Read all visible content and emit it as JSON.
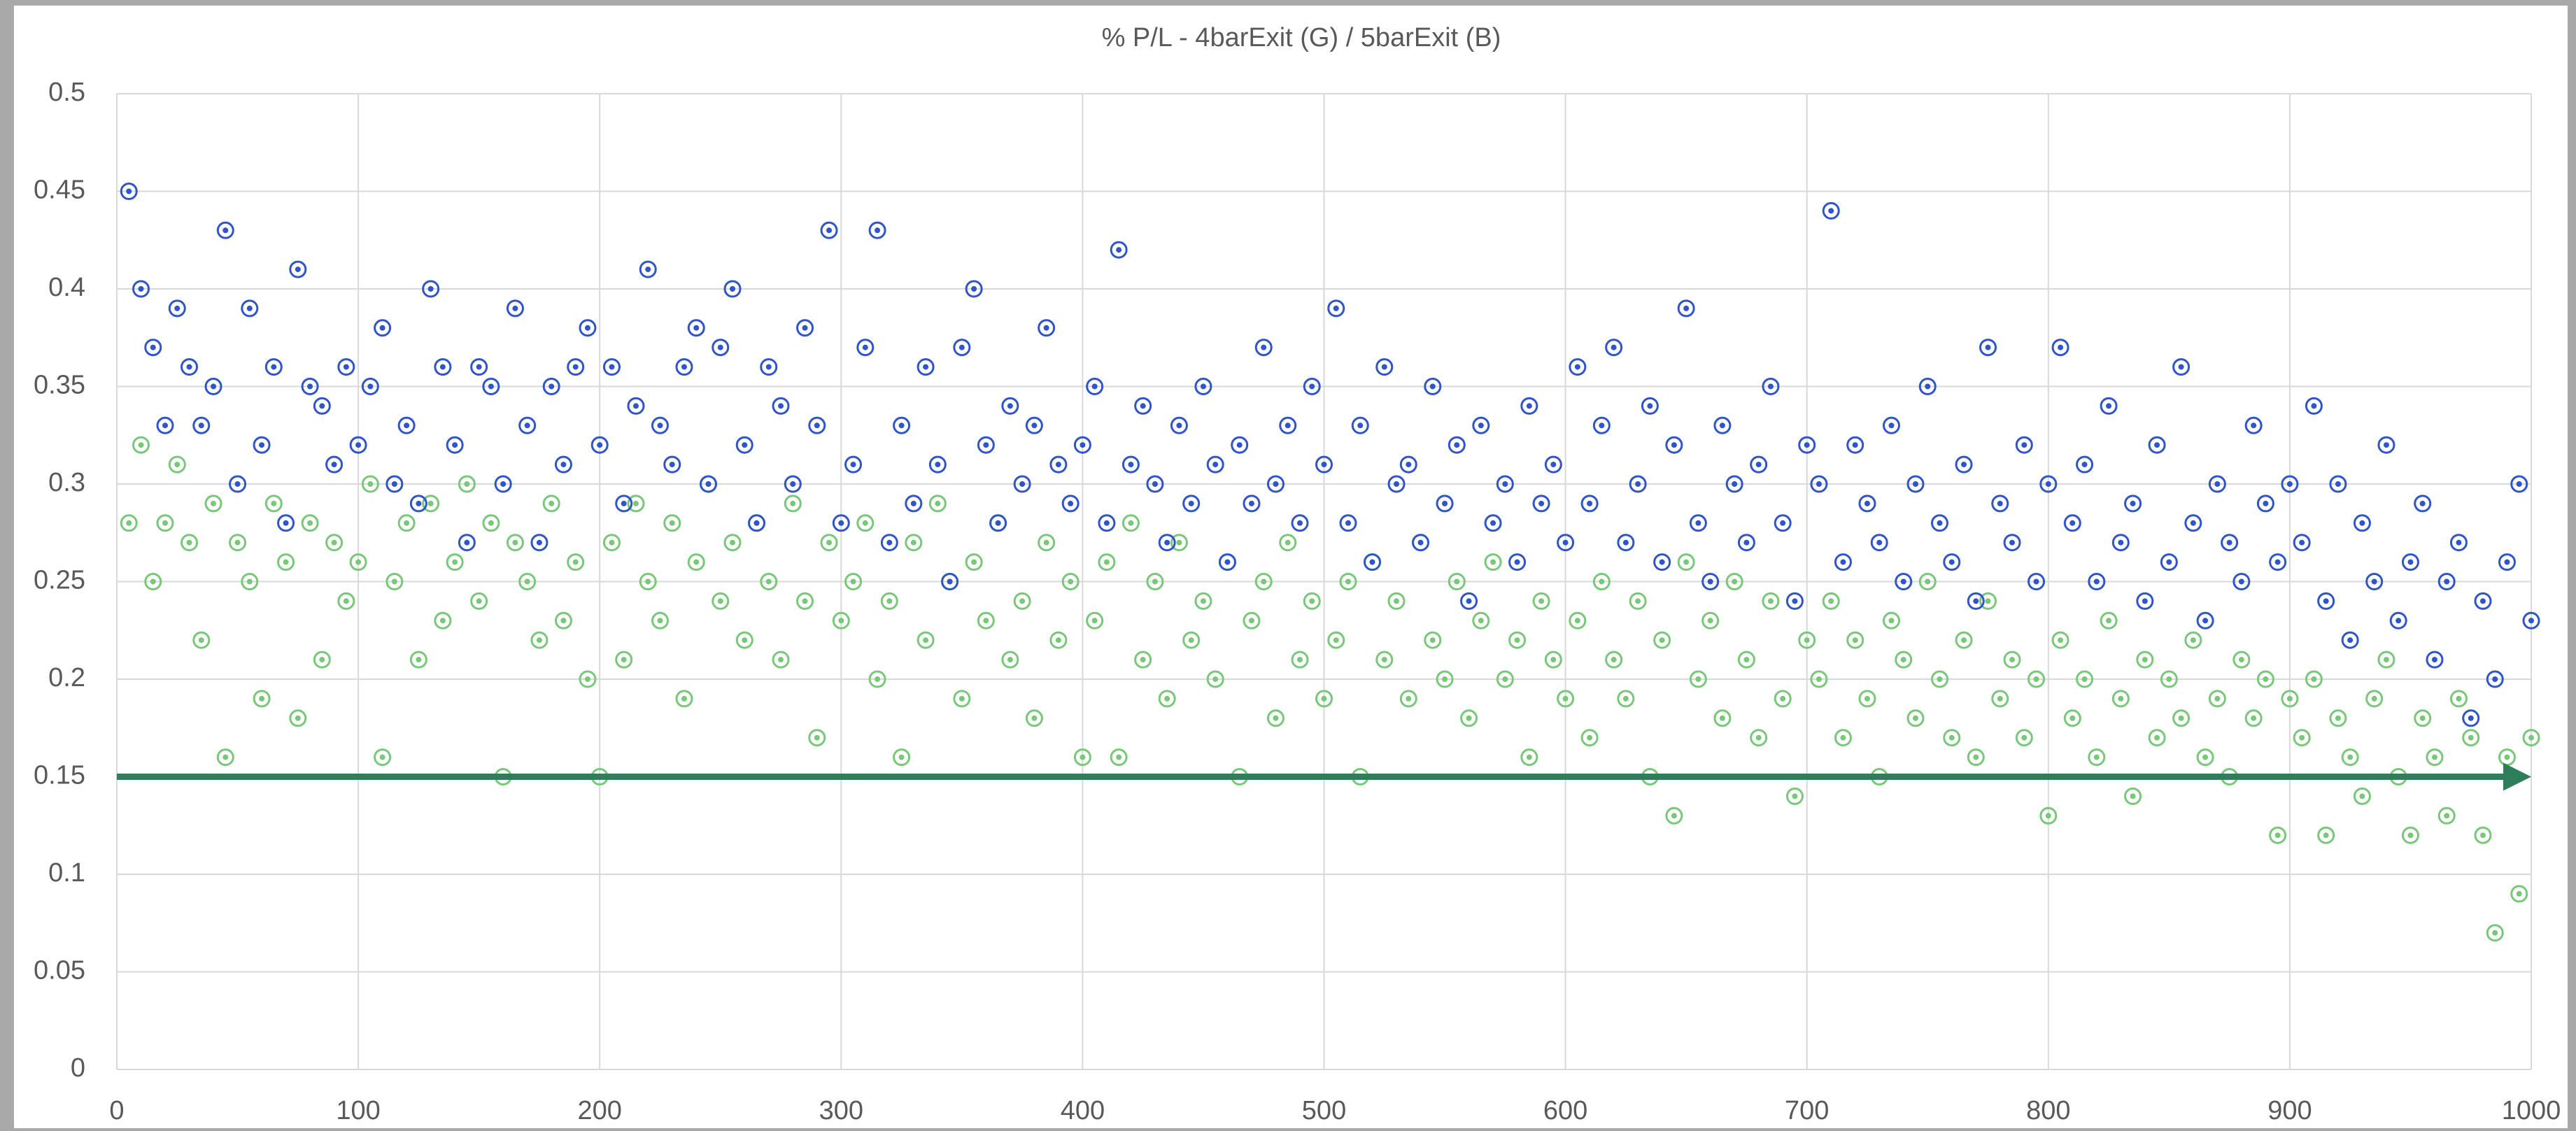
{
  "chart_data": {
    "type": "scatter",
    "title": "% P/L - 4barExit (G) / 5barExit (B)",
    "xlim": [
      0,
      1000
    ],
    "xticks": [
      0,
      100,
      200,
      300,
      400,
      500,
      600,
      700,
      800,
      900,
      1000
    ],
    "ylim": [
      0,
      0.5
    ],
    "yticks": [
      0,
      0.05,
      0.1,
      0.15,
      0.2,
      0.25,
      0.3,
      0.35,
      0.4,
      0.45,
      0.5
    ],
    "grid": true,
    "x": [
      5,
      10,
      15,
      20,
      25,
      30,
      35,
      40,
      45,
      50,
      55,
      60,
      65,
      70,
      75,
      80,
      85,
      90,
      95,
      100,
      105,
      110,
      115,
      120,
      125,
      130,
      135,
      140,
      145,
      150,
      155,
      160,
      165,
      170,
      175,
      180,
      185,
      190,
      195,
      200,
      205,
      210,
      215,
      220,
      225,
      230,
      235,
      240,
      245,
      250,
      255,
      260,
      265,
      270,
      275,
      280,
      285,
      290,
      295,
      300,
      305,
      310,
      315,
      320,
      325,
      330,
      335,
      340,
      345,
      350,
      355,
      360,
      365,
      370,
      375,
      380,
      385,
      390,
      395,
      400,
      405,
      410,
      415,
      420,
      425,
      430,
      435,
      440,
      445,
      450,
      455,
      460,
      465,
      470,
      475,
      480,
      485,
      490,
      495,
      500,
      505,
      510,
      515,
      520,
      525,
      530,
      535,
      540,
      545,
      550,
      555,
      560,
      565,
      570,
      575,
      580,
      585,
      590,
      595,
      600,
      605,
      610,
      615,
      620,
      625,
      630,
      635,
      640,
      645,
      650,
      655,
      660,
      665,
      670,
      675,
      680,
      685,
      690,
      695,
      700,
      705,
      710,
      715,
      720,
      725,
      730,
      735,
      740,
      745,
      750,
      755,
      760,
      765,
      770,
      775,
      780,
      785,
      790,
      795,
      800,
      805,
      810,
      815,
      820,
      825,
      830,
      835,
      840,
      845,
      850,
      855,
      860,
      865,
      870,
      875,
      880,
      885,
      890,
      895,
      900,
      905,
      910,
      915,
      920,
      925,
      930,
      935,
      940,
      945,
      950,
      955,
      960,
      965,
      970,
      975,
      980,
      985,
      990,
      995,
      1000
    ],
    "series": [
      {
        "name": "4barExit (G)",
        "color": "#79c879",
        "values": [
          0.28,
          0.32,
          0.25,
          0.28,
          0.31,
          0.27,
          0.22,
          0.29,
          0.16,
          0.27,
          0.25,
          0.19,
          0.29,
          0.26,
          0.18,
          0.28,
          0.21,
          0.27,
          0.24,
          0.26,
          0.3,
          0.16,
          0.25,
          0.28,
          0.21,
          0.29,
          0.23,
          0.26,
          0.3,
          0.24,
          0.28,
          0.15,
          0.27,
          0.25,
          0.22,
          0.29,
          0.23,
          0.26,
          0.2,
          0.15,
          0.27,
          0.21,
          0.29,
          0.25,
          0.23,
          0.28,
          0.19,
          0.26,
          0.3,
          0.24,
          0.27,
          0.22,
          0.28,
          0.25,
          0.21,
          0.29,
          0.24,
          0.17,
          0.27,
          0.23,
          0.25,
          0.28,
          0.2,
          0.24,
          0.16,
          0.27,
          0.22,
          0.29,
          0.25,
          0.19,
          0.26,
          0.23,
          0.28,
          0.21,
          0.24,
          0.18,
          0.27,
          0.22,
          0.25,
          0.16,
          0.23,
          0.26,
          0.16,
          0.28,
          0.21,
          0.25,
          0.19,
          0.27,
          0.22,
          0.24,
          0.2,
          0.26,
          0.15,
          0.23,
          0.25,
          0.18,
          0.27,
          0.21,
          0.24,
          0.19,
          0.22,
          0.25,
          0.15,
          0.26,
          0.21,
          0.24,
          0.19,
          0.27,
          0.22,
          0.2,
          0.25,
          0.18,
          0.23,
          0.26,
          0.2,
          0.22,
          0.16,
          0.24,
          0.21,
          0.19,
          0.23,
          0.17,
          0.25,
          0.21,
          0.19,
          0.24,
          0.15,
          0.22,
          0.13,
          0.26,
          0.2,
          0.23,
          0.18,
          0.25,
          0.21,
          0.17,
          0.24,
          0.19,
          0.14,
          0.22,
          0.2,
          0.24,
          0.17,
          0.22,
          0.19,
          0.15,
          0.23,
          0.21,
          0.18,
          0.25,
          0.2,
          0.17,
          0.22,
          0.16,
          0.24,
          0.19,
          0.21,
          0.17,
          0.2,
          0.13,
          0.22,
          0.18,
          0.2,
          0.16,
          0.23,
          0.19,
          0.14,
          0.21,
          0.17,
          0.2,
          0.18,
          0.22,
          0.16,
          0.19,
          0.15,
          0.21,
          0.18,
          0.2,
          0.12,
          0.19,
          0.17,
          0.2,
          0.12,
          0.18,
          0.16,
          0.14,
          0.19,
          0.21,
          0.15,
          0.12,
          0.18,
          0.16,
          0.13,
          0.19,
          0.17,
          0.12,
          0.07,
          0.16,
          0.09,
          0.17
        ]
      },
      {
        "name": "5barExit (B)",
        "color": "#2f55c8",
        "values": [
          0.45,
          0.4,
          0.37,
          0.33,
          0.39,
          0.36,
          0.33,
          0.35,
          0.43,
          0.3,
          0.39,
          0.32,
          0.36,
          0.28,
          0.41,
          0.35,
          0.34,
          0.31,
          0.36,
          0.32,
          0.35,
          0.38,
          0.3,
          0.33,
          0.29,
          0.4,
          0.36,
          0.32,
          0.27,
          0.36,
          0.35,
          0.3,
          0.39,
          0.33,
          0.27,
          0.35,
          0.31,
          0.36,
          0.38,
          0.32,
          0.36,
          0.29,
          0.34,
          0.41,
          0.33,
          0.31,
          0.36,
          0.38,
          0.3,
          0.37,
          0.4,
          0.32,
          0.28,
          0.36,
          0.34,
          0.3,
          0.38,
          0.33,
          0.43,
          0.28,
          0.31,
          0.37,
          0.43,
          0.27,
          0.33,
          0.29,
          0.36,
          0.31,
          0.25,
          0.37,
          0.4,
          0.32,
          0.28,
          0.34,
          0.3,
          0.33,
          0.38,
          0.31,
          0.29,
          0.32,
          0.35,
          0.28,
          0.42,
          0.31,
          0.34,
          0.3,
          0.27,
          0.33,
          0.29,
          0.35,
          0.31,
          0.26,
          0.32,
          0.29,
          0.37,
          0.3,
          0.33,
          0.28,
          0.35,
          0.31,
          0.39,
          0.28,
          0.33,
          0.26,
          0.36,
          0.3,
          0.31,
          0.27,
          0.35,
          0.29,
          0.32,
          0.24,
          0.33,
          0.28,
          0.3,
          0.26,
          0.34,
          0.29,
          0.31,
          0.27,
          0.36,
          0.29,
          0.33,
          0.37,
          0.27,
          0.3,
          0.34,
          0.26,
          0.32,
          0.39,
          0.28,
          0.25,
          0.33,
          0.3,
          0.27,
          0.31,
          0.35,
          0.28,
          0.24,
          0.32,
          0.3,
          0.44,
          0.26,
          0.32,
          0.29,
          0.27,
          0.33,
          0.25,
          0.3,
          0.35,
          0.28,
          0.26,
          0.31,
          0.24,
          0.37,
          0.29,
          0.27,
          0.32,
          0.25,
          0.3,
          0.37,
          0.28,
          0.31,
          0.25,
          0.34,
          0.27,
          0.29,
          0.24,
          0.32,
          0.26,
          0.36,
          0.28,
          0.23,
          0.3,
          0.27,
          0.25,
          0.33,
          0.29,
          0.26,
          0.3,
          0.27,
          0.34,
          0.24,
          0.3,
          0.22,
          0.28,
          0.25,
          0.32,
          0.23,
          0.26,
          0.29,
          0.21,
          0.25,
          0.27,
          0.18,
          0.24,
          0.2,
          0.26,
          0.3,
          0.23
        ]
      }
    ],
    "reference_line": {
      "y": 0.15,
      "color": "#2e7d5b"
    }
  }
}
